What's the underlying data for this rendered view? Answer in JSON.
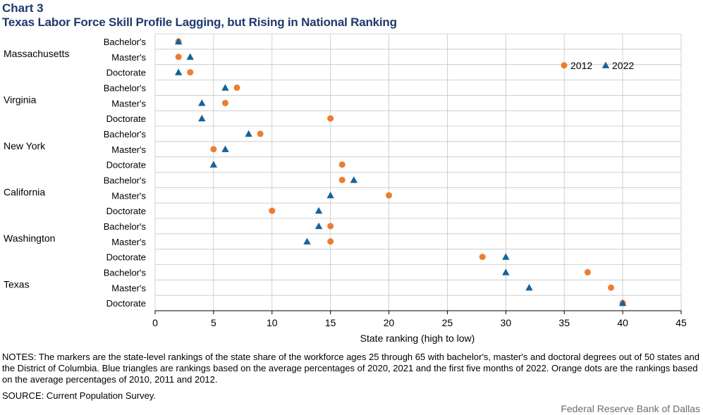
{
  "header": {
    "chart_number": "Chart 3",
    "title": "Texas Labor Force Skill Profile Lagging, but Rising in National Ranking"
  },
  "footer": {
    "notes": "NOTES: The markers are the state-level rankings of the state share of the workforce ages 25 through 65 with bachelor's, master's and doctoral degrees out of 50 states and the District of Columbia. Blue triangles are rankings based on the average percentages of 2020, 2021 and the first five months of 2022. Orange dots are the rankings based on the average percentages of 2010, 2011 and 2012.",
    "source": "SOURCE: Current Population Survey.",
    "credit": "Federal Reserve Bank of Dallas"
  },
  "colors": {
    "series_2012": "#ed7d31",
    "series_2022": "#156399",
    "title": "#1f3a6b",
    "grid": "#c6c6c6"
  },
  "chart_data": {
    "type": "scatter",
    "title": "Texas Labor Force Skill Profile Lagging, but Rising in National Ranking",
    "xlabel": "State ranking (high to low)",
    "ylabel": "",
    "xlim": [
      0,
      45
    ],
    "xticks": [
      0,
      5,
      10,
      15,
      20,
      25,
      30,
      35,
      40,
      45
    ],
    "grid": "on",
    "legend_placement": "top-right",
    "groups": [
      {
        "state": "Massachusetts",
        "rows": [
          {
            "degree": "Bachelor's",
            "y2012": 2,
            "y2022": 2
          },
          {
            "degree": "Master's",
            "y2012": 2,
            "y2022": 3
          },
          {
            "degree": "Doctorate",
            "y2012": 3,
            "y2022": 2
          }
        ]
      },
      {
        "state": "Virginia",
        "rows": [
          {
            "degree": "Bachelor's",
            "y2012": 7,
            "y2022": 6
          },
          {
            "degree": "Master's",
            "y2012": 6,
            "y2022": 4
          },
          {
            "degree": "Doctorate",
            "y2012": 15,
            "y2022": 4
          }
        ]
      },
      {
        "state": "New York",
        "rows": [
          {
            "degree": "Bachelor's",
            "y2012": 9,
            "y2022": 8
          },
          {
            "degree": "Master's",
            "y2012": 5,
            "y2022": 6
          },
          {
            "degree": "Doctorate",
            "y2012": 16,
            "y2022": 5
          }
        ]
      },
      {
        "state": "California",
        "rows": [
          {
            "degree": "Bachelor's",
            "y2012": 16,
            "y2022": 17
          },
          {
            "degree": "Master's",
            "y2012": 20,
            "y2022": 15
          },
          {
            "degree": "Doctorate",
            "y2012": 10,
            "y2022": 14
          }
        ]
      },
      {
        "state": "Washington",
        "rows": [
          {
            "degree": "Bachelor's",
            "y2012": 15,
            "y2022": 14
          },
          {
            "degree": "Master's",
            "y2012": 15,
            "y2022": 13
          },
          {
            "degree": "Doctorate",
            "y2012": 28,
            "y2022": 30
          }
        ]
      },
      {
        "state": "Texas",
        "rows": [
          {
            "degree": "Bachelor's",
            "y2012": 37,
            "y2022": 30
          },
          {
            "degree": "Master's",
            "y2012": 39,
            "y2022": 32
          },
          {
            "degree": "Doctorate",
            "y2012": 40,
            "y2022": 40
          }
        ]
      }
    ],
    "series": [
      {
        "name": "2012",
        "key": "y2012",
        "marker": "circle"
      },
      {
        "name": "2022",
        "key": "y2022",
        "marker": "triangle"
      }
    ]
  }
}
